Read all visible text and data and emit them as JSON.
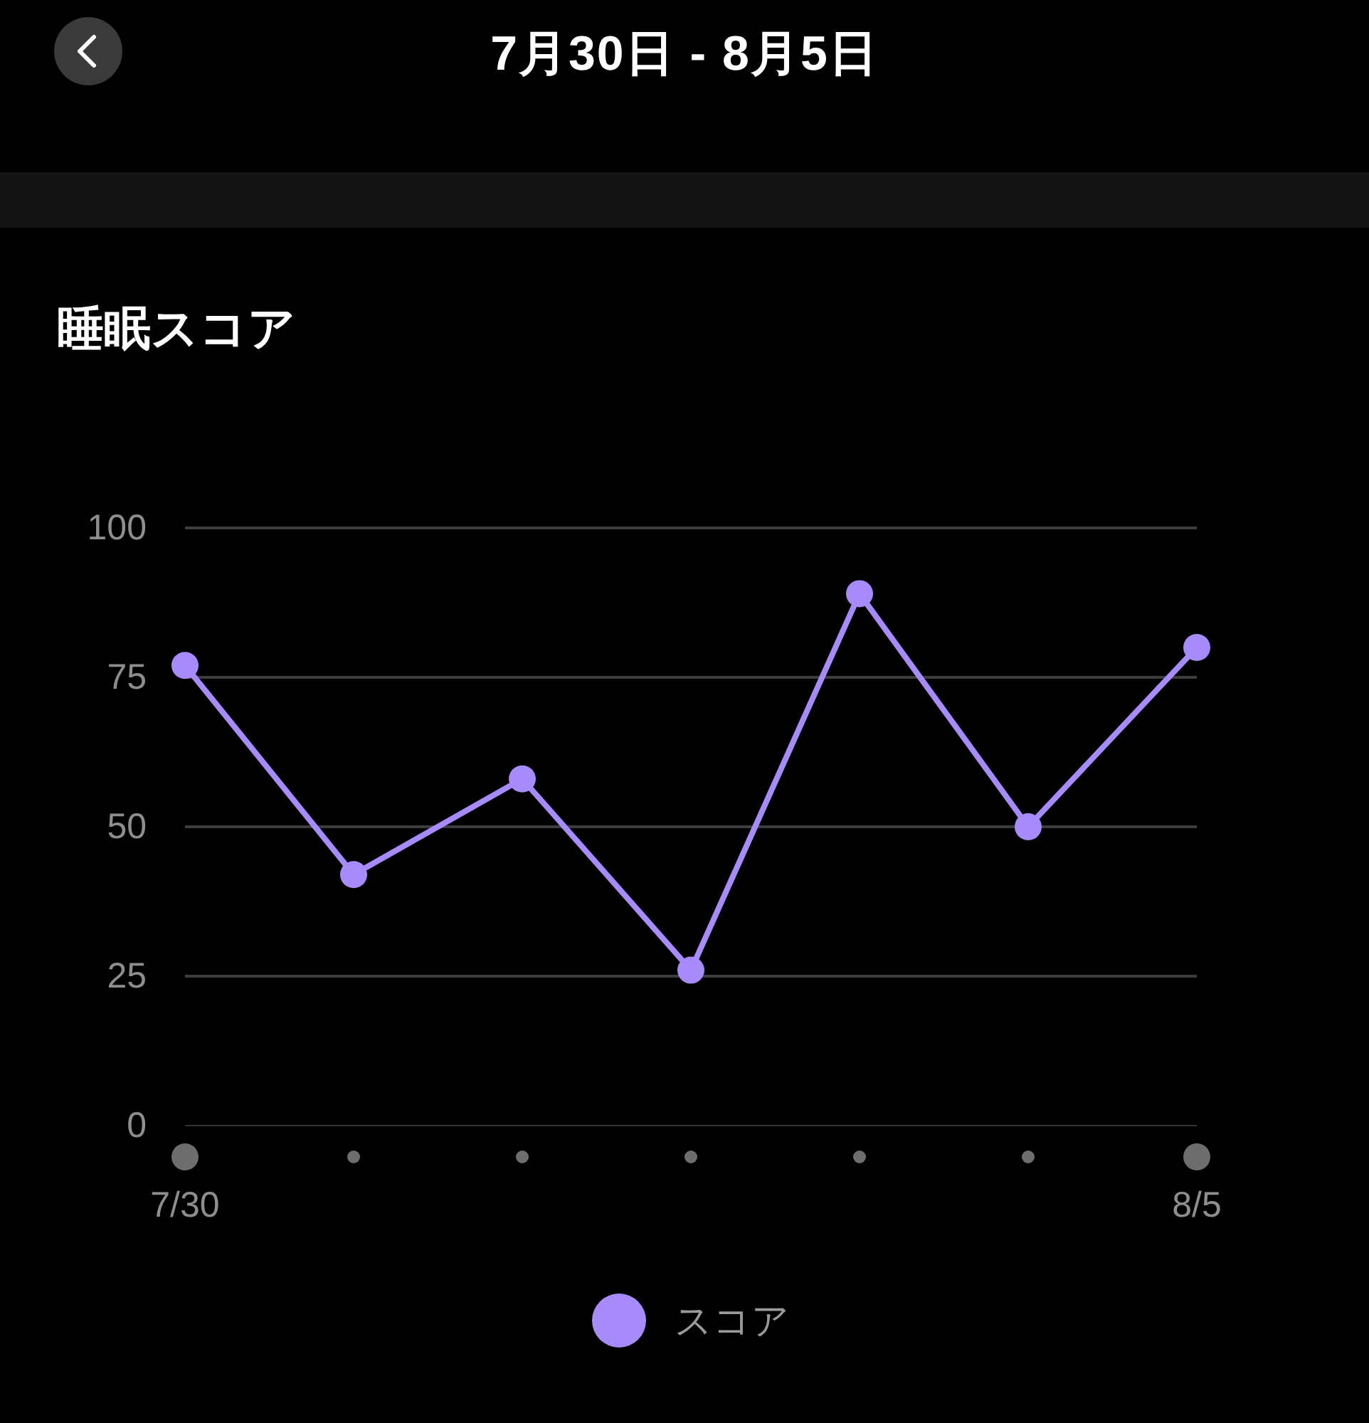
{
  "chart_data": {
    "type": "line",
    "title": "7月30日 - 8月5日",
    "subtitle": "睡眠スコア",
    "categories": [
      "7/30",
      null,
      null,
      null,
      null,
      null,
      "8/5"
    ],
    "series": [
      {
        "name": "スコア",
        "color": "#a78bfa",
        "values": [
          77,
          42,
          58,
          26,
          89,
          50,
          80
        ]
      }
    ],
    "ylim": [
      0,
      100
    ],
    "yticks": [
      0,
      25,
      50,
      75,
      100
    ],
    "grid": "y",
    "legend": "bottom",
    "marker": "circle",
    "line_style": "solid"
  }
}
